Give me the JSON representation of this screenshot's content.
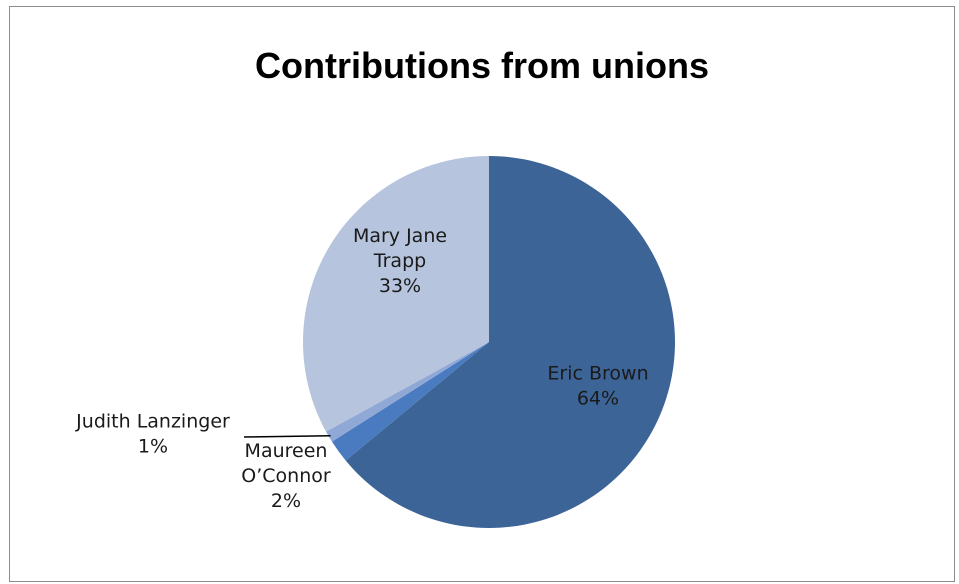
{
  "chart_data": {
    "type": "pie",
    "title": "Contributions from unions",
    "slices": [
      {
        "name": "Eric Brown",
        "value": 64,
        "label_lines": [
          "Eric Brown",
          "64%"
        ],
        "color": "#3d6497"
      },
      {
        "name": "Maureen O’Connor",
        "value": 2,
        "label_lines": [
          "Maureen",
          "O’Connor",
          "2%"
        ],
        "color": "#4a7ac0"
      },
      {
        "name": "Judith Lanzinger",
        "value": 1,
        "label_lines": [
          "Judith Lanzinger",
          "1%"
        ],
        "color": "#8fa8d6"
      },
      {
        "name": "Mary Jane Trapp",
        "value": 33,
        "label_lines": [
          "Mary Jane",
          "Trapp",
          "33%"
        ],
        "color": "#b6c4de"
      }
    ],
    "legend": "none",
    "data_labels": "category name and percentage"
  }
}
